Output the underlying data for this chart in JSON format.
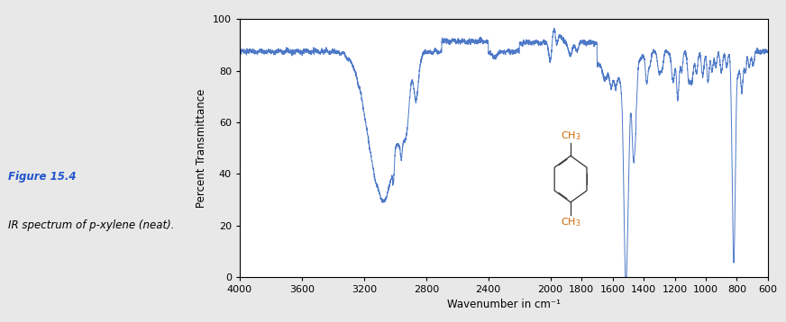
{
  "xlabel": "Wavenumber in cm⁻¹",
  "ylabel": "Percent Transmittance",
  "xlim": [
    4000,
    600
  ],
  "ylim": [
    0,
    100
  ],
  "yticks": [
    0,
    20,
    40,
    60,
    80,
    100
  ],
  "xticks": [
    4000,
    3600,
    3200,
    2800,
    2400,
    2000,
    1800,
    1600,
    1400,
    1200,
    1000,
    800,
    600
  ],
  "line_color": "#4472c4",
  "background_color": "#e8e8e8",
  "plot_bg_color": "#ffffff",
  "figure_caption": "Figure 15.4",
  "figure_caption_italic": "IR spectrum of p-xylene (neat).",
  "caption_color": "#2255cc",
  "ch3_color": "#cc6600",
  "ring_color": "#333333"
}
